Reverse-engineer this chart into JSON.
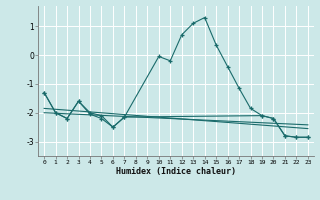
{
  "xlabel": "Humidex (Indice chaleur)",
  "bg_color": "#cce8e8",
  "grid_color": "#ffffff",
  "line_color": "#1a6b6b",
  "xlim": [
    -0.5,
    23.5
  ],
  "ylim": [
    -3.5,
    1.7
  ],
  "yticks": [
    -3,
    -2,
    -1,
    0,
    1
  ],
  "xtick_labels": [
    "0",
    "1",
    "2",
    "3",
    "4",
    "5",
    "6",
    "7",
    "8",
    "9",
    "10",
    "11",
    "12",
    "13",
    "14",
    "15",
    "16",
    "17",
    "18",
    "19",
    "20",
    "21",
    "22",
    "23"
  ],
  "curve1_x": [
    0,
    1,
    2,
    3,
    4,
    5,
    6,
    7,
    10,
    11,
    12,
    13,
    14,
    15,
    16,
    17,
    18,
    19,
    20,
    21,
    22,
    23
  ],
  "curve1_y": [
    -1.3,
    -2.0,
    -2.2,
    -1.6,
    -2.0,
    -2.1,
    -2.5,
    -2.15,
    -0.05,
    -0.2,
    0.7,
    1.1,
    1.3,
    0.35,
    -0.4,
    -1.15,
    -1.85,
    -2.1,
    -2.2,
    -2.8,
    -2.85,
    -2.85
  ],
  "curve2_x": [
    0,
    1,
    2,
    3,
    4,
    5,
    6,
    7,
    19,
    20,
    21,
    22,
    23
  ],
  "curve2_y": [
    -1.3,
    -2.0,
    -2.2,
    -1.6,
    -2.05,
    -2.2,
    -2.5,
    -2.15,
    -2.1,
    -2.2,
    -2.8,
    -2.85,
    -2.85
  ],
  "trend1_x": [
    0,
    23
  ],
  "trend1_y": [
    -1.85,
    -2.55
  ],
  "trend2_x": [
    0,
    23
  ],
  "trend2_y": [
    -2.0,
    -2.42
  ]
}
